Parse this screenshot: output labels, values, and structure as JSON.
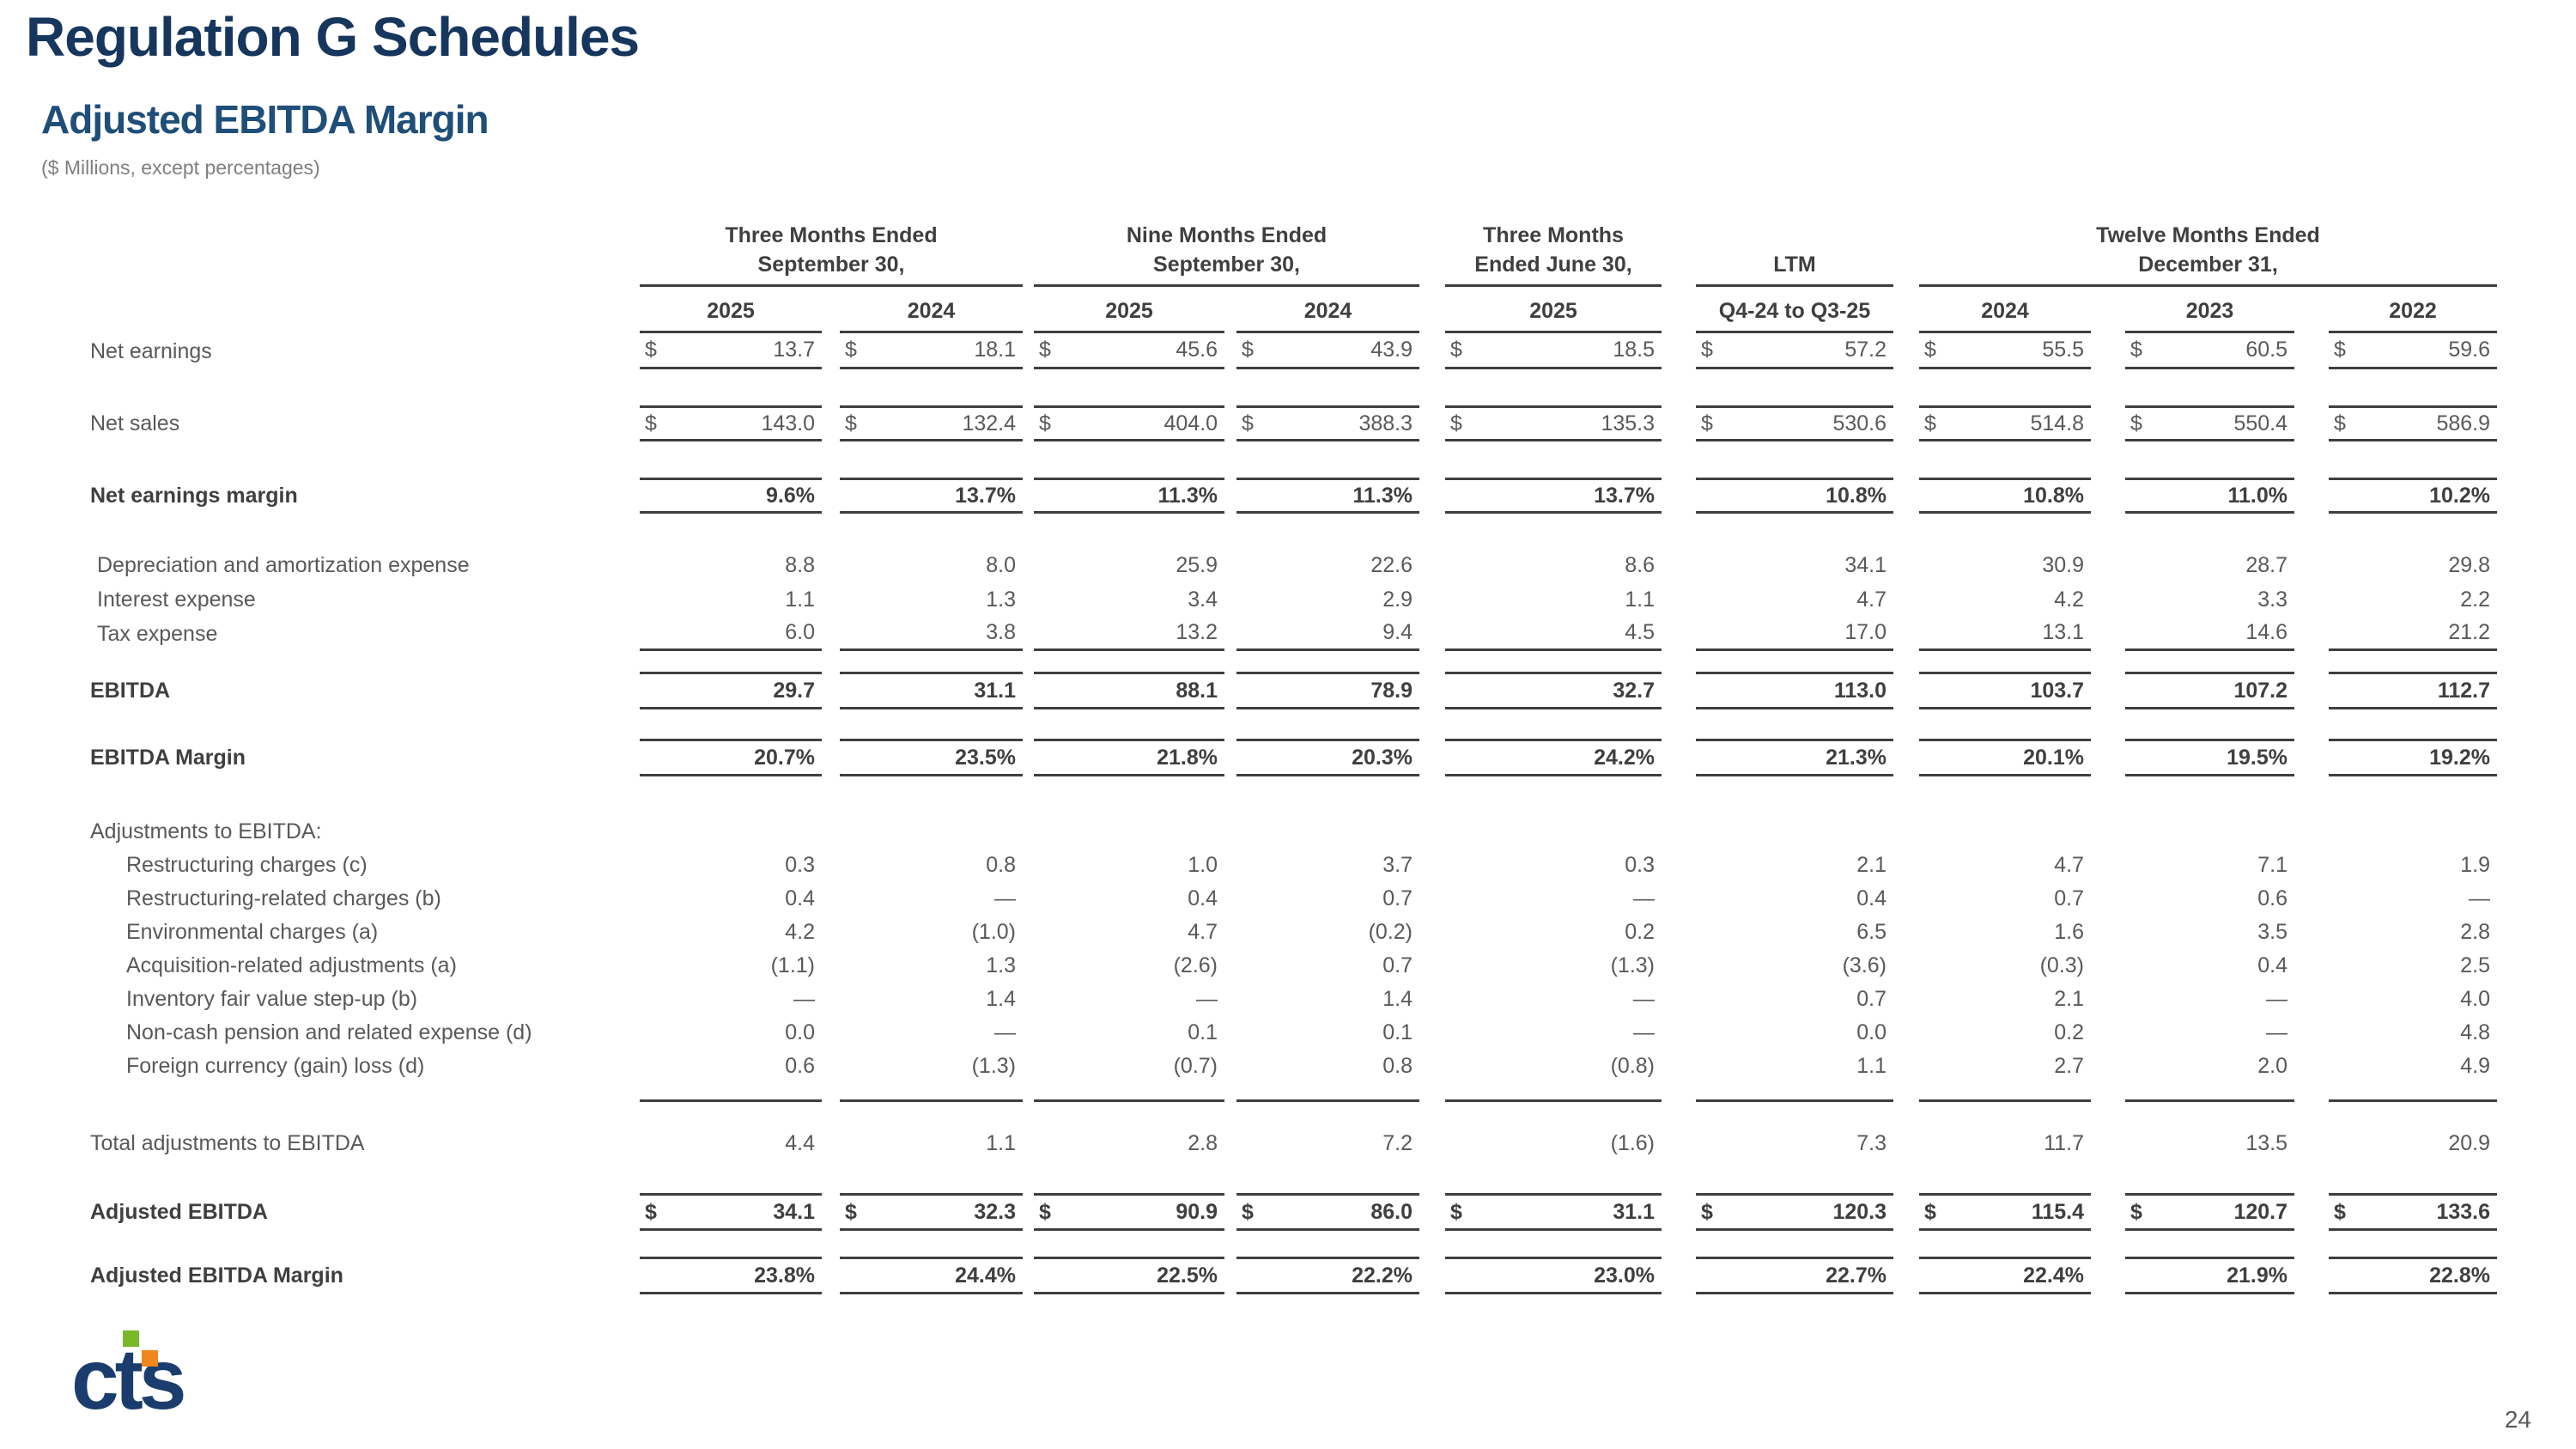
{
  "page": {
    "title": "Regulation G Schedules",
    "subtitle": "Adjusted EBITDA Margin",
    "units_note": "($ Millions, except percentages)",
    "page_number": "24",
    "logo_text": "cts"
  },
  "colors": {
    "title_navy": "#17365d",
    "subtitle_navy": "#1f4e79",
    "table_text_gray": "#595959",
    "table_bold_gray": "#3f3f3f",
    "rule_line": "#3f3f3f",
    "logo_navy": "#1b3d6d",
    "logo_green": "#7ab829",
    "logo_orange": "#f0861e"
  },
  "table": {
    "col_groups": [
      {
        "line1": "Three Months Ended",
        "line2": "September 30,",
        "span": 2
      },
      {
        "line1": "Nine Months Ended",
        "line2": "September 30,",
        "span": 2
      },
      {
        "line1": "Three Months",
        "line2": "Ended June 30,",
        "span": 1
      },
      {
        "line1": "",
        "line2": "LTM",
        "span": 1
      },
      {
        "line1": "Twelve Months Ended",
        "line2": "December 31,",
        "span": 3
      }
    ],
    "col_headers": [
      "2025",
      "2024",
      "2025",
      "2024",
      "2025",
      "Q4-24 to Q3-25",
      "2024",
      "2023",
      "2022"
    ],
    "rows": [
      {
        "t": "row",
        "label": "Net earnings",
        "fmt": "dollar",
        "border": "bottom",
        "h": 42,
        "values": [
          "13.7",
          "18.1",
          "45.6",
          "43.9",
          "18.5",
          "57.2",
          "55.5",
          "60.5",
          "59.6"
        ]
      },
      {
        "t": "gap",
        "h": 42
      },
      {
        "t": "row",
        "label": "Net sales",
        "fmt": "dollar",
        "border": "both",
        "h": 42,
        "values": [
          "143.0",
          "132.4",
          "404.0",
          "388.3",
          "135.3",
          "530.6",
          "514.8",
          "550.4",
          "586.9"
        ]
      },
      {
        "t": "gap",
        "h": 42
      },
      {
        "t": "row",
        "label": "Net earnings margin",
        "fmt": "plain",
        "bold": true,
        "border": "both",
        "h": 42,
        "values": [
          "9.6%",
          "13.7%",
          "11.3%",
          "11.3%",
          "13.7%",
          "10.8%",
          "10.8%",
          "11.0%",
          "10.2%"
        ]
      },
      {
        "t": "gap",
        "h": 40
      },
      {
        "t": "row",
        "label": "Depreciation and amortization expense",
        "fmt": "plain",
        "indent": 1,
        "border": "none",
        "h": 40,
        "values": [
          "8.8",
          "8.0",
          "25.9",
          "22.6",
          "8.6",
          "34.1",
          "30.9",
          "28.7",
          "29.8"
        ]
      },
      {
        "t": "row",
        "label": "Interest expense",
        "fmt": "plain",
        "indent": 1,
        "border": "none",
        "h": 40,
        "values": [
          "1.1",
          "1.3",
          "3.4",
          "2.9",
          "1.1",
          "4.7",
          "4.2",
          "3.3",
          "2.2"
        ]
      },
      {
        "t": "row",
        "label": "Tax expense",
        "fmt": "plain",
        "indent": 1,
        "border": "bottom",
        "h": 40,
        "values": [
          "6.0",
          "3.8",
          "13.2",
          "9.4",
          "4.5",
          "17.0",
          "13.1",
          "14.6",
          "21.2"
        ]
      },
      {
        "t": "gap",
        "h": 24
      },
      {
        "t": "row",
        "label": "EBITDA",
        "fmt": "plain",
        "bold": true,
        "border": "both",
        "h": 44,
        "values": [
          "29.7",
          "31.1",
          "88.1",
          "78.9",
          "32.7",
          "113.0",
          "103.7",
          "107.2",
          "112.7"
        ]
      },
      {
        "t": "gap",
        "h": 34
      },
      {
        "t": "row",
        "label": "EBITDA Margin",
        "fmt": "plain",
        "bold": true,
        "border": "both",
        "h": 44,
        "values": [
          "20.7%",
          "23.5%",
          "21.8%",
          "20.3%",
          "24.2%",
          "21.3%",
          "20.1%",
          "19.5%",
          "19.2%"
        ]
      },
      {
        "t": "gap",
        "h": 44
      },
      {
        "t": "section",
        "label": "Adjustments to EBITDA:",
        "h": 40
      },
      {
        "t": "row",
        "label": "Restructuring charges (c)",
        "fmt": "plain",
        "indent": 2,
        "border": "none",
        "h": 39,
        "values": [
          "0.3",
          "0.8",
          "1.0",
          "3.7",
          "0.3",
          "2.1",
          "4.7",
          "7.1",
          "1.9"
        ]
      },
      {
        "t": "row",
        "label": "Restructuring-related charges (b)",
        "fmt": "plain",
        "indent": 2,
        "border": "none",
        "h": 39,
        "values": [
          "0.4",
          "—",
          "0.4",
          "0.7",
          "—",
          "0.4",
          "0.7",
          "0.6",
          "—"
        ]
      },
      {
        "t": "row",
        "label": "Environmental charges (a)",
        "fmt": "plain",
        "indent": 2,
        "border": "none",
        "h": 39,
        "values": [
          "4.2",
          "(1.0)",
          "4.7",
          "(0.2)",
          "0.2",
          "6.5",
          "1.6",
          "3.5",
          "2.8"
        ]
      },
      {
        "t": "row",
        "label": "Acquisition-related adjustments (a)",
        "fmt": "plain",
        "indent": 2,
        "border": "none",
        "h": 39,
        "values": [
          "(1.1)",
          "1.3",
          "(2.6)",
          "0.7",
          "(1.3)",
          "(3.6)",
          "(0.3)",
          "0.4",
          "2.5"
        ]
      },
      {
        "t": "row",
        "label": "Inventory fair value step-up (b)",
        "fmt": "plain",
        "indent": 2,
        "border": "none",
        "h": 39,
        "values": [
          "—",
          "1.4",
          "—",
          "1.4",
          "—",
          "0.7",
          "2.1",
          "—",
          "4.0"
        ]
      },
      {
        "t": "row",
        "label": "Non-cash pension and related expense (d)",
        "fmt": "plain",
        "indent": 2,
        "border": "none",
        "h": 39,
        "values": [
          "0.0",
          "—",
          "0.1",
          "0.1",
          "—",
          "0.0",
          "0.2",
          "—",
          "4.8"
        ]
      },
      {
        "t": "row",
        "label": "Foreign currency (gain) loss (d)",
        "fmt": "plain",
        "indent": 2,
        "border": "none",
        "h": 39,
        "values": [
          "0.6",
          "(1.3)",
          "(0.7)",
          "0.8",
          "(0.8)",
          "1.1",
          "2.7",
          "2.0",
          "4.9"
        ]
      },
      {
        "t": "rule",
        "h": 22
      },
      {
        "t": "gap",
        "h": 28
      },
      {
        "t": "row",
        "label": "Total adjustments to EBITDA",
        "fmt": "plain",
        "border": "none",
        "h": 40,
        "values": [
          "4.4",
          "1.1",
          "2.8",
          "7.2",
          "(1.6)",
          "7.3",
          "11.7",
          "13.5",
          "20.9"
        ]
      },
      {
        "t": "gap",
        "h": 38
      },
      {
        "t": "row",
        "label": "Adjusted EBITDA",
        "fmt": "dollar",
        "bold": true,
        "border": "both",
        "h": 44,
        "values": [
          "34.1",
          "32.3",
          "90.9",
          "86.0",
          "31.1",
          "120.3",
          "115.4",
          "120.7",
          "133.6"
        ]
      },
      {
        "t": "gap",
        "h": 30
      },
      {
        "t": "row",
        "label": "Adjusted EBITDA Margin",
        "fmt": "plain",
        "bold": true,
        "border": "both",
        "h": 44,
        "values": [
          "23.8%",
          "24.4%",
          "22.5%",
          "22.2%",
          "23.0%",
          "22.7%",
          "22.4%",
          "21.9%",
          "22.8%"
        ]
      }
    ]
  }
}
